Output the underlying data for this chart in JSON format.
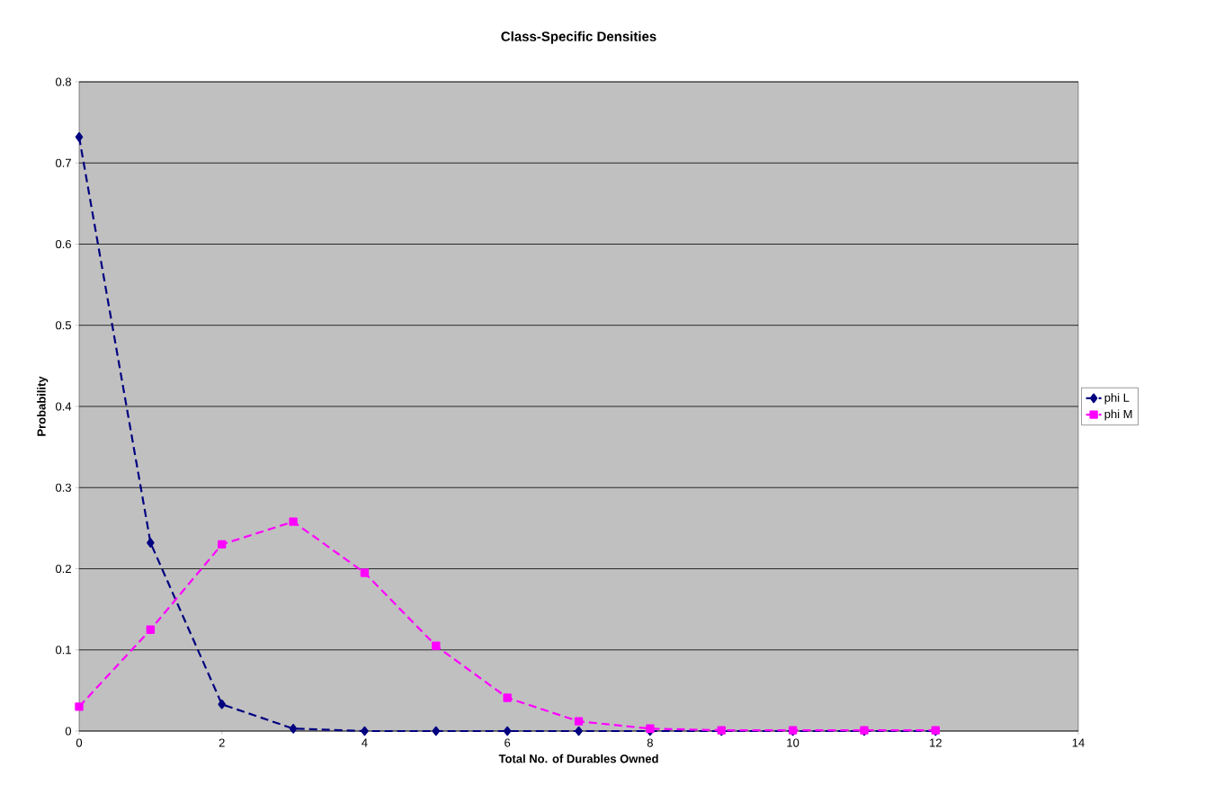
{
  "chart_data": {
    "type": "line",
    "title": "Class-Specific Densities",
    "xlabel": "Total No. of Durables Owned",
    "ylabel": "Probability",
    "x": [
      0,
      1,
      2,
      3,
      4,
      5,
      6,
      7,
      8,
      9,
      10,
      11,
      12
    ],
    "series": [
      {
        "name": "phi L",
        "color": "#000080",
        "marker": "diamond",
        "line_style": "dashed",
        "values": [
          0.732,
          0.232,
          0.033,
          0.003,
          0,
          0,
          0,
          0,
          0,
          0,
          0,
          0,
          0
        ]
      },
      {
        "name": "phi M",
        "color": "#ff00ff",
        "marker": "square",
        "line_style": "dashed",
        "values": [
          0.03,
          0.125,
          0.23,
          0.258,
          0.195,
          0.105,
          0.041,
          0.012,
          0.003,
          0.001,
          0.001,
          0.001,
          0.001
        ]
      }
    ],
    "xlim": [
      0,
      14
    ],
    "ylim": [
      0,
      0.8
    ],
    "xticks": [
      0,
      2,
      4,
      6,
      8,
      10,
      12,
      14
    ],
    "yticks": [
      0,
      0.1,
      0.2,
      0.3,
      0.4,
      0.5,
      0.6,
      0.7,
      0.8
    ],
    "grid": "y",
    "legend": "right"
  }
}
